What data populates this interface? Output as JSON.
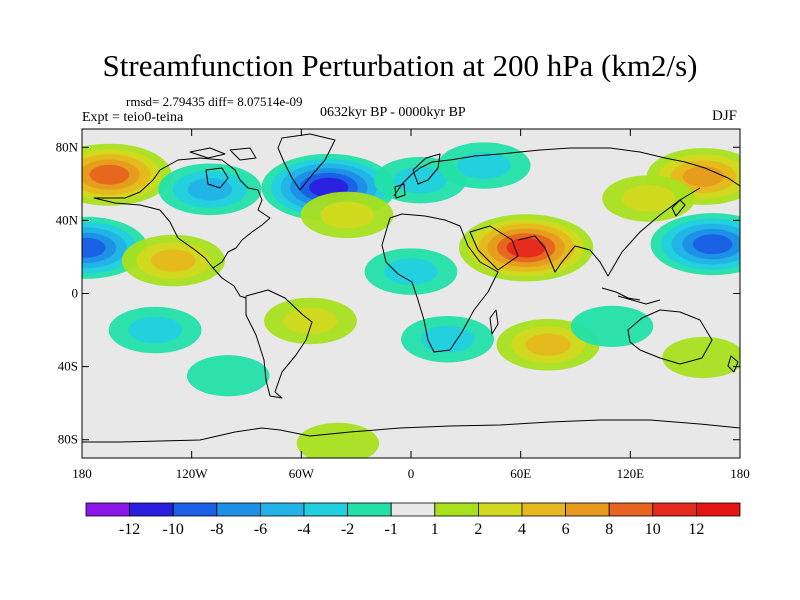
{
  "title": "Streamfunction Perturbation at 200 hPa (km2/s)",
  "rmsd_text": "rmsd= 2.79435 diff= 8.07514e-09",
  "experiment": "Expt = teio0-teina",
  "period": "0632kyr BP - 0000kyr BP",
  "season": "DJF",
  "map": {
    "projection": "cylindrical-equidistant",
    "background_color": "#e8e8e8",
    "lat_range": [
      -90,
      90
    ],
    "lon_range": [
      -180,
      180
    ],
    "lat_ticks": [
      {
        "value": 80,
        "label": "80N"
      },
      {
        "value": 40,
        "label": "40N"
      },
      {
        "value": 0,
        "label": "0"
      },
      {
        "value": -40,
        "label": "40S"
      },
      {
        "value": -80,
        "label": "80S"
      }
    ],
    "lon_ticks": [
      {
        "value": -180,
        "label": "180"
      },
      {
        "value": -120,
        "label": "120W"
      },
      {
        "value": -60,
        "label": "60W"
      },
      {
        "value": 0,
        "label": "0"
      },
      {
        "value": 60,
        "label": "60E"
      },
      {
        "value": 120,
        "label": "120E"
      },
      {
        "value": 180,
        "label": "180"
      }
    ]
  },
  "colorbar": {
    "boundaries": [
      "-12",
      "-10",
      "-8",
      "-6",
      "-4",
      "-2",
      "-1",
      "1",
      "2",
      "4",
      "6",
      "8",
      "10",
      "12"
    ],
    "colors": [
      "#8a17e8",
      "#2a1fe0",
      "#1a5fe6",
      "#1e8fe6",
      "#22b2e6",
      "#22cfe0",
      "#22e0a8",
      "#e8e8e8",
      "#a8e01e",
      "#d2d81e",
      "#e6b81e",
      "#e69a1e",
      "#e6641e",
      "#e62a1e",
      "#e61414"
    ]
  },
  "features": [
    {
      "name": "north-pacific-positive-anomaly",
      "lon": -165,
      "lat": 65,
      "value": 10
    },
    {
      "name": "north-america-negative-anomaly",
      "lon": -110,
      "lat": 57,
      "value": -6
    },
    {
      "name": "greenland-negative-anomaly",
      "lon": -45,
      "lat": 58,
      "value": -12
    },
    {
      "name": "north-atlantic-negative-anomaly",
      "lon": 5,
      "lat": 62,
      "value": -4
    },
    {
      "name": "europe-negative-anomaly",
      "lon": 40,
      "lat": 70,
      "value": -4
    },
    {
      "name": "siberia-positive-anomaly",
      "lon": 160,
      "lat": 64,
      "value": 8
    },
    {
      "name": "east-asia-positive-anomaly",
      "lon": 130,
      "lat": 52,
      "value": 4
    },
    {
      "name": "mid-atlantic-positive-anomaly",
      "lon": -35,
      "lat": 43,
      "value": 4
    },
    {
      "name": "arabia-india-positive-anomaly",
      "lon": 63,
      "lat": 25,
      "value": 12
    },
    {
      "name": "west-pacific-negative-anomaly",
      "lon": 165,
      "lat": 27,
      "value": -10
    },
    {
      "name": "central-pacific-negative-anomaly",
      "lon": -178,
      "lat": 25,
      "value": -10
    },
    {
      "name": "east-pacific-positive-anomaly",
      "lon": -130,
      "lat": 18,
      "value": 6
    },
    {
      "name": "north-africa-negative-anomaly",
      "lon": 0,
      "lat": 12,
      "value": -4
    },
    {
      "name": "south-pacific-negative-anomaly",
      "lon": -140,
      "lat": -20,
      "value": -4
    },
    {
      "name": "south-america-positive-anomaly",
      "lon": -55,
      "lat": -15,
      "value": 4
    },
    {
      "name": "south-atlantic-africa-negative-anomaly",
      "lon": 20,
      "lat": -25,
      "value": -4
    },
    {
      "name": "indian-ocean-positive-anomaly",
      "lon": 75,
      "lat": -28,
      "value": 6
    },
    {
      "name": "australia-negative-anomaly",
      "lon": 110,
      "lat": -18,
      "value": -2
    },
    {
      "name": "east-australia-positive-anomaly",
      "lon": 160,
      "lat": -35,
      "value": 2
    },
    {
      "name": "south-pacific-ring-negative-anomaly",
      "lon": -100,
      "lat": -45,
      "value": -2
    },
    {
      "name": "antarctic-positive-anomaly",
      "lon": -40,
      "lat": -82,
      "value": 2
    }
  ]
}
